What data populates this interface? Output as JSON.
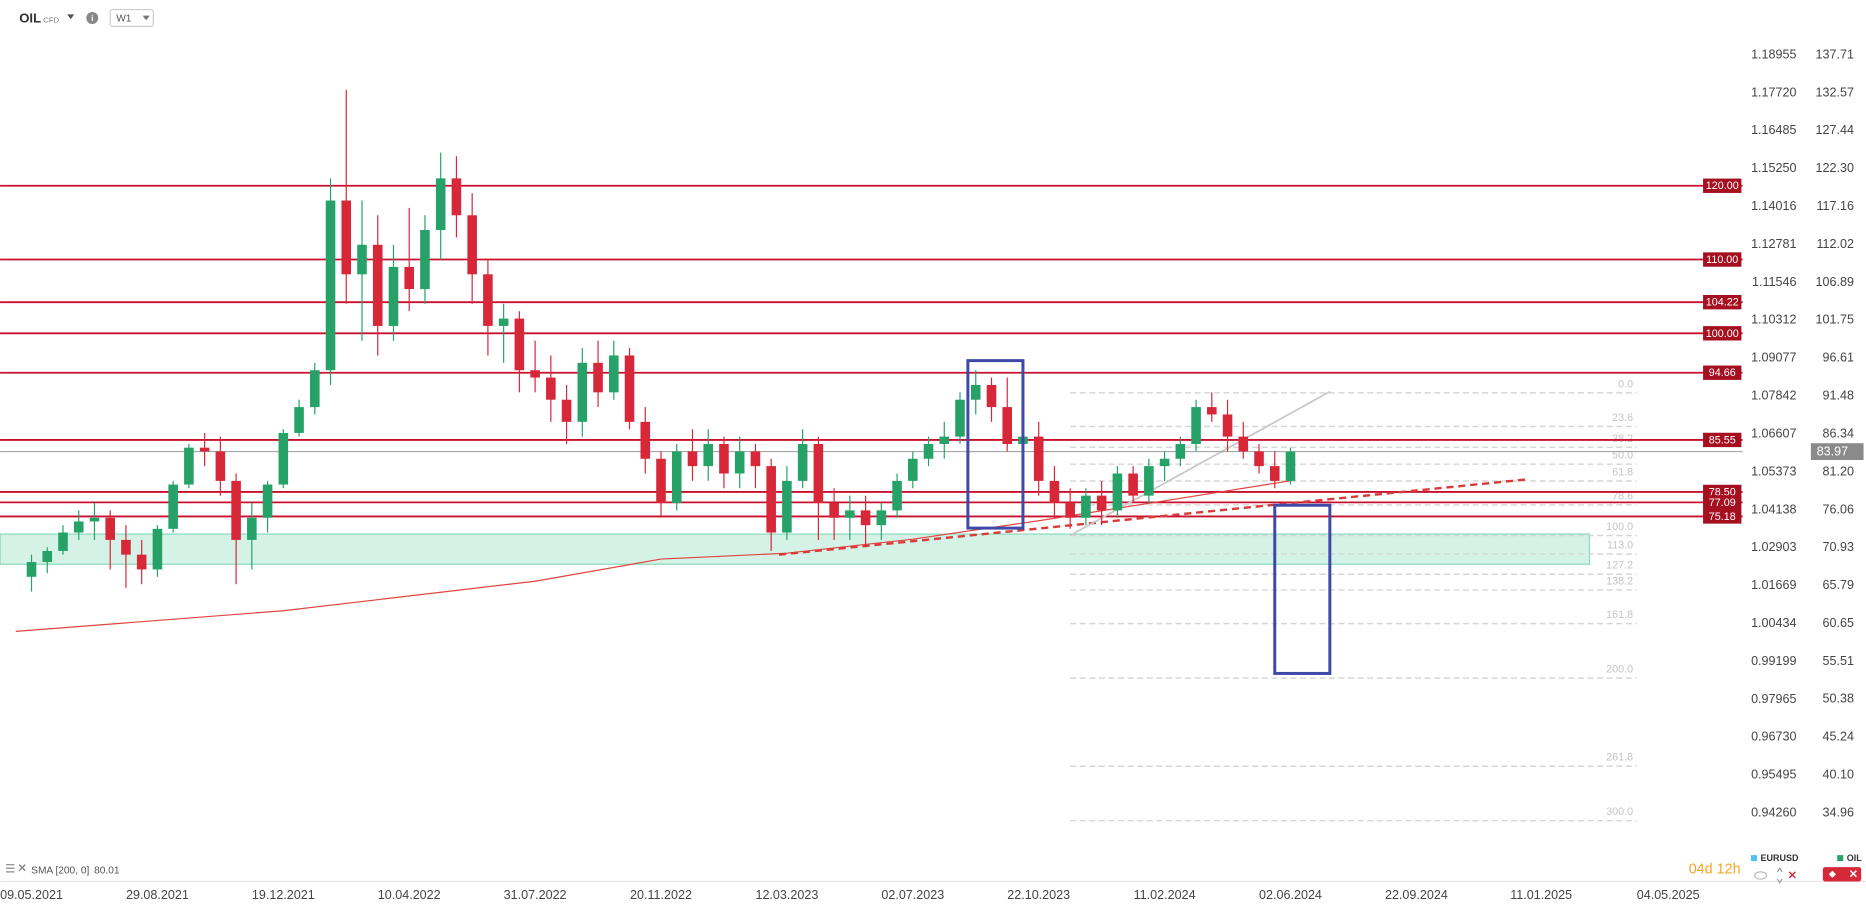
{
  "header": {
    "symbol": "OIL",
    "symbol_type": "CFD",
    "interval": "W1",
    "countdown": "04d 12h"
  },
  "chart_data": {
    "type": "candlestick",
    "x": [
      "09.05.2021",
      "23.05.2021",
      "06.06.2021",
      "20.06.2021",
      "04.07.2021",
      "18.07.2021",
      "01.08.2021",
      "15.08.2021",
      "29.08.2021",
      "12.09.2021",
      "26.09.2021",
      "10.10.2021",
      "24.10.2021",
      "07.11.2021",
      "21.11.2021",
      "05.12.2021",
      "19.12.2021",
      "02.01.2022",
      "16.01.2022",
      "30.01.2022",
      "13.02.2022",
      "27.02.2022",
      "13.03.2022",
      "27.03.2022",
      "10.04.2022",
      "24.04.2022",
      "08.05.2022",
      "22.05.2022",
      "05.06.2022",
      "19.06.2022",
      "03.07.2022",
      "17.07.2022",
      "31.07.2022",
      "14.08.2022",
      "28.08.2022",
      "11.09.2022",
      "25.09.2022",
      "09.10.2022",
      "23.10.2022",
      "06.11.2022",
      "20.11.2022",
      "04.12.2022",
      "18.12.2022",
      "01.01.2023",
      "15.01.2023",
      "29.01.2023",
      "12.02.2023",
      "26.02.2023",
      "12.03.2023",
      "26.03.2023",
      "09.04.2023",
      "23.04.2023",
      "07.05.2023",
      "21.05.2023",
      "04.06.2023",
      "18.06.2023",
      "02.07.2023",
      "16.07.2023",
      "30.07.2023",
      "13.08.2023",
      "27.08.2023",
      "10.09.2023",
      "24.09.2023",
      "08.10.2023",
      "22.10.2023",
      "05.11.2023",
      "19.11.2023",
      "03.12.2023",
      "17.12.2023",
      "31.12.2023",
      "14.01.2024",
      "28.01.2024",
      "11.02.2024",
      "25.02.2024",
      "10.03.2024",
      "24.03.2024",
      "07.04.2024",
      "21.04.2024",
      "05.05.2024",
      "19.05.2024",
      "02.06.2024"
    ],
    "open": [
      67,
      69,
      70.5,
      73,
      74.5,
      75,
      72,
      70,
      68,
      73.5,
      79.5,
      84.5,
      84,
      80,
      72,
      75,
      79.5,
      86.5,
      90,
      95,
      118,
      108,
      112,
      101,
      109,
      106,
      114,
      121,
      116,
      108,
      101,
      102,
      95,
      94,
      91,
      88,
      96,
      92,
      97,
      88,
      83,
      77,
      84,
      82,
      85,
      81,
      84,
      82,
      73,
      80,
      85,
      77,
      75,
      76,
      74,
      76,
      80,
      83,
      85,
      86,
      91,
      93,
      90,
      85,
      86,
      80,
      77,
      75,
      78,
      76,
      81,
      78,
      82,
      83,
      85,
      90,
      89,
      86,
      84,
      82,
      80
    ],
    "high": [
      70,
      71,
      74,
      76,
      77,
      76,
      74,
      72,
      74,
      80,
      85,
      86.5,
      86,
      81,
      77,
      80,
      87,
      91,
      96,
      121,
      133,
      118,
      116,
      112,
      117,
      116,
      124.5,
      124,
      119,
      110,
      104,
      103,
      99,
      97,
      93,
      98,
      99,
      99,
      98,
      90,
      84,
      85,
      87,
      87,
      86,
      86,
      85,
      83,
      82,
      87,
      86,
      79,
      78,
      78,
      77,
      81,
      84,
      86,
      88,
      92,
      95,
      94,
      94,
      92,
      88,
      82,
      79,
      79,
      80,
      82,
      82,
      83,
      84,
      86,
      91,
      92,
      91,
      88,
      85,
      84,
      84.5
    ],
    "low": [
      65,
      67.5,
      70,
      72,
      72,
      68,
      65.5,
      66,
      67,
      73,
      79,
      82,
      78,
      66,
      68,
      73,
      79,
      86,
      89,
      93,
      104,
      99,
      97,
      99,
      103,
      104,
      110,
      113,
      104,
      97,
      96,
      92,
      92,
      88,
      85,
      86,
      90,
      91,
      87,
      81,
      75,
      76,
      80,
      80,
      79,
      79,
      79,
      70.5,
      72,
      79,
      72,
      72,
      72,
      71,
      72,
      75,
      79,
      82,
      83,
      85,
      89,
      88,
      84,
      84,
      78,
      75,
      73.5,
      74,
      74,
      75,
      77,
      77,
      80,
      82,
      84,
      88,
      84,
      83,
      81,
      79,
      79.5
    ],
    "close": [
      69,
      70.5,
      73,
      74.5,
      75,
      72,
      70,
      68,
      73.5,
      79.5,
      84.5,
      84,
      80,
      72,
      75,
      79.5,
      86.5,
      90,
      95,
      118,
      108,
      112,
      101,
      109,
      106,
      114,
      121,
      116,
      108,
      101,
      102,
      95,
      94,
      91,
      88,
      96,
      92,
      97,
      88,
      83,
      77,
      84,
      82,
      85,
      81,
      84,
      82,
      73,
      80,
      85,
      77,
      75,
      76,
      74,
      76,
      80,
      83,
      85,
      86,
      91,
      93,
      90,
      85,
      86,
      80,
      77,
      75,
      78,
      76,
      81,
      78,
      82,
      83,
      85,
      90,
      89,
      86,
      84,
      82,
      80,
      83.97
    ],
    "colors": {
      "up": "#26a269",
      "down": "#d62839"
    },
    "xlim": [
      "11.04.2021",
      "06.07.2025"
    ],
    "xticks": [
      "09.05.2021",
      "29.08.2021",
      "19.12.2021",
      "10.04.2022",
      "31.07.2022",
      "20.11.2022",
      "12.03.2023",
      "02.07.2023",
      "22.10.2023",
      "11.02.2024",
      "02.06.2024",
      "22.09.2024",
      "11.01.2025",
      "04.05.2025"
    ],
    "y_name": "OIL",
    "ylim": [
      34.96,
      137.71
    ],
    "yticks": [
      137.71,
      132.57,
      127.44,
      {
        "value": 122.3,
        "label": "122.30"
      },
      117.16,
      112.02,
      106.89,
      101.75,
      96.61,
      91.48,
      86.34,
      {
        "value": 81.2,
        "label": "81.20"
      },
      76.06,
      70.93,
      65.79,
      60.65,
      55.51,
      50.38,
      45.24,
      {
        "value": 40.1,
        "label": "40.10"
      },
      34.96
    ],
    "y2_name": "EURUSD",
    "y2lim": [
      0.9426,
      1.18955
    ],
    "y2ticks": [
      1.18955,
      {
        "value": 1.1772,
        "label": "1.17720"
      },
      1.16485,
      {
        "value": 1.1525,
        "label": "1.15250"
      },
      1.14016,
      1.12781,
      1.11546,
      1.10312,
      1.09077,
      1.07842,
      1.06607,
      1.05373,
      1.04138,
      1.02903,
      1.01669,
      1.00434,
      0.99199,
      0.97965,
      {
        "value": 0.9673,
        "label": "0.96730"
      },
      0.95495,
      {
        "value": 0.9426,
        "label": "0.94260"
      }
    ],
    "levels": [
      {
        "value": 120,
        "label": "120.00"
      },
      {
        "value": 110,
        "label": "110.00"
      },
      104.22,
      {
        "value": 100,
        "label": "100.00"
      },
      94.66,
      85.55,
      {
        "value": 78.5,
        "label": "78.50"
      },
      77.09,
      75.18
    ],
    "level_color": "#c8102e",
    "sma": {
      "name": "SMA [200, 0]",
      "color": "#e0453f",
      "x": [
        "25.04.2021",
        "19.12.2021",
        "31.07.2022",
        "20.11.2022",
        "12.03.2023",
        "02.07.2023",
        "22.10.2023",
        "11.02.2024",
        "02.06.2024"
      ],
      "values": [
        59.6,
        62.4,
        66.4,
        69.4,
        70.2,
        72.1,
        74.6,
        77.3,
        80.01
      ]
    },
    "zone": {
      "x": [
        "11.04.2021",
        "23.02.2025"
      ],
      "y": [
        68.7,
        72.8
      ],
      "color": "#2ebd85"
    },
    "boxes": [
      {
        "x": [
          "20.08.2023",
          "08.10.2023"
        ],
        "y": [
          73.6,
          96.3
        ]
      },
      {
        "x": [
          "19.05.2024",
          "07.07.2024"
        ],
        "y": [
          53.9,
          76.7
        ]
      }
    ],
    "box_color": "#3f4aa8",
    "trendlines": [
      {
        "x": [
          "05.03.2023",
          "29.12.2024"
        ],
        "y": [
          70.0,
          80.2
        ],
        "color": "#d93a3a",
        "dashed": true
      },
      {
        "x": [
          "19.11.2023",
          "07.07.2024"
        ],
        "y": [
          72.6,
          92.1
        ],
        "color": "#c8c8c8",
        "dashed": false
      }
    ],
    "fibonacci": {
      "x": [
        "19.11.2023",
        "06.04.2025"
      ],
      "high": 91.93,
      "low": 72.6,
      "levels": [
        {
          "value": 0,
          "label": "0.0"
        },
        23.6,
        38.2,
        {
          "value": 50,
          "label": "50.0"
        },
        61.8,
        78.6,
        {
          "value": 100,
          "label": "100.0"
        },
        {
          "value": 113,
          "label": "113.0"
        },
        127.2,
        138.2,
        161.8,
        {
          "value": 200,
          "label": "200.0"
        },
        261.8,
        {
          "value": 300,
          "label": "300.0"
        }
      ]
    }
  }
}
